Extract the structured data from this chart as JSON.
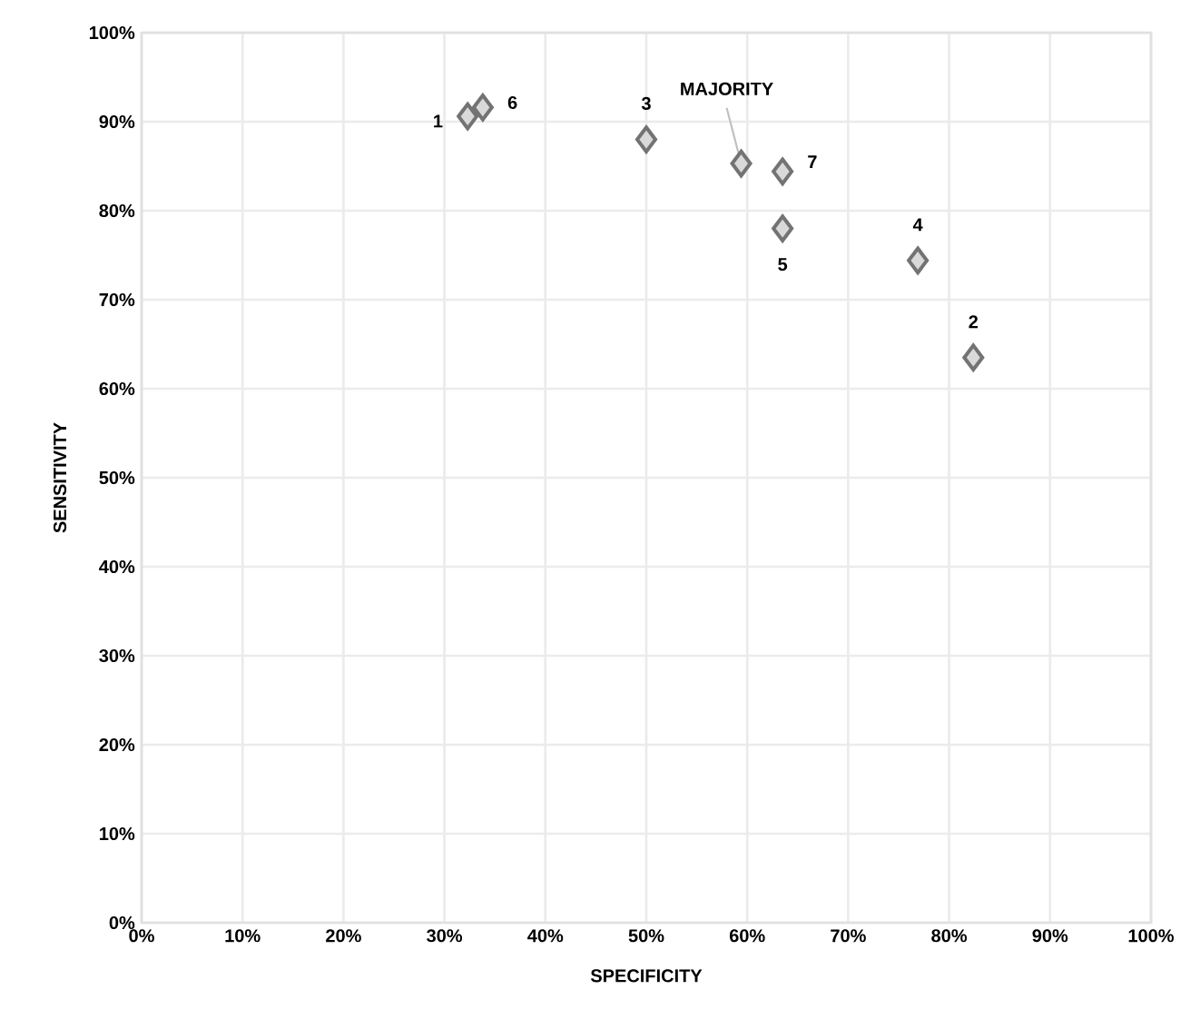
{
  "chart_data": {
    "type": "scatter",
    "xlabel": "SPECIFICITY",
    "ylabel": "SENSITIVITY",
    "x": [
      32.3,
      82.4,
      50.0,
      76.9,
      63.5,
      33.8,
      63.5,
      59.4
    ],
    "values": [
      90.6,
      63.5,
      88.0,
      74.4,
      78.0,
      91.6,
      84.4,
      85.3
    ],
    "color": "#d9d9d9",
    "marker": "diamond",
    "grid": true,
    "xlim": [
      0,
      100
    ],
    "ylim": [
      0,
      100
    ],
    "xticks": [
      {
        "value": 0,
        "label": "0%"
      },
      {
        "value": 10,
        "label": "10%"
      },
      {
        "value": 20,
        "label": "20%"
      },
      {
        "value": 30,
        "label": "30%"
      },
      {
        "value": 40,
        "label": "40%"
      },
      {
        "value": 50,
        "label": "50%"
      },
      {
        "value": 60,
        "label": "60%"
      },
      {
        "value": 70,
        "label": "70%"
      },
      {
        "value": 80,
        "label": "80%"
      },
      {
        "value": 90,
        "label": "90%"
      },
      {
        "value": 100,
        "label": "100%"
      }
    ],
    "yticks": [
      {
        "value": 0,
        "label": "0%"
      },
      {
        "value": 10,
        "label": "10%"
      },
      {
        "value": 20,
        "label": "20%"
      },
      {
        "value": 30,
        "label": "30%"
      },
      {
        "value": 40,
        "label": "40%"
      },
      {
        "value": 50,
        "label": "50%"
      },
      {
        "value": 60,
        "label": "60%"
      },
      {
        "value": 70,
        "label": "70%"
      },
      {
        "value": 80,
        "label": "80%"
      },
      {
        "value": 90,
        "label": "90%"
      },
      {
        "value": 100,
        "label": "100%"
      }
    ],
    "annotations": [
      {
        "text": "1",
        "x": 32.3,
        "y": 90.6
      },
      {
        "text": "2",
        "x": 82.4,
        "y": 63.5
      },
      {
        "text": "3",
        "x": 50.0,
        "y": 88.0
      },
      {
        "text": "4",
        "x": 76.9,
        "y": 74.4
      },
      {
        "text": "5",
        "x": 63.5,
        "y": 78.0
      },
      {
        "text": "6",
        "x": 33.8,
        "y": 91.6
      },
      {
        "text": "7",
        "x": 63.5,
        "y": 84.4
      },
      {
        "text": "MAJORITY",
        "x": 59.4,
        "y": 85.3
      }
    ]
  }
}
